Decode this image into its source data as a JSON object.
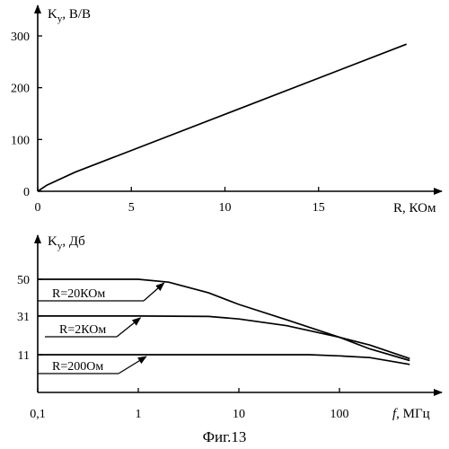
{
  "caption": "Фиг.13",
  "chart_data": [
    {
      "type": "line",
      "ylabel_main": "K",
      "ylabel_sub": "у",
      "ylabel_rest": ", В/В",
      "xlabel": "R, КОм",
      "xlim": [
        0,
        20
      ],
      "ylim": [
        0,
        330
      ],
      "x_ticks": [
        0,
        5,
        10,
        15
      ],
      "x_tick_labels": [
        "0",
        "5",
        "10",
        "15"
      ],
      "y_ticks": [
        0,
        100,
        200,
        300
      ],
      "y_tick_labels": [
        "0",
        "100",
        "200",
        "300"
      ],
      "grid": false,
      "series": [
        {
          "x": [
            0,
            0.5,
            2,
            19.7
          ],
          "y": [
            0,
            12,
            37,
            284
          ]
        }
      ]
    },
    {
      "type": "line",
      "x_scale": "log",
      "ylabel_main": "K",
      "ylabel_sub": "у",
      "ylabel_rest": ", Дб",
      "xlabel_italic": "f",
      "xlabel_rest": ", МГц",
      "xlim": [
        0.1,
        1000
      ],
      "ylim": [
        0,
        62
      ],
      "x_ticks": [
        0.1,
        1,
        10,
        100
      ],
      "x_tick_labels": [
        "0,1",
        "1",
        "10",
        "100"
      ],
      "y_ticks": [
        11,
        31,
        50
      ],
      "y_tick_labels": [
        "11",
        "31",
        "50"
      ],
      "grid": false,
      "series": [
        {
          "name": "R=20КОм",
          "x": [
            0.1,
            1,
            2,
            5,
            10,
            30,
            100,
            200,
            500
          ],
          "y": [
            50,
            50,
            48.5,
            43,
            37,
            29,
            20,
            14,
            8
          ]
        },
        {
          "name": "R=2КОм",
          "x": [
            0.1,
            1,
            5,
            10,
            30,
            100,
            200,
            500
          ],
          "y": [
            31,
            31,
            30.8,
            29.5,
            26,
            20,
            16,
            9
          ]
        },
        {
          "name": "R=200Ом",
          "x": [
            0.1,
            1,
            10,
            50,
            100,
            200,
            500
          ],
          "y": [
            11,
            11,
            11,
            11,
            10.4,
            9.5,
            6
          ]
        }
      ]
    }
  ]
}
